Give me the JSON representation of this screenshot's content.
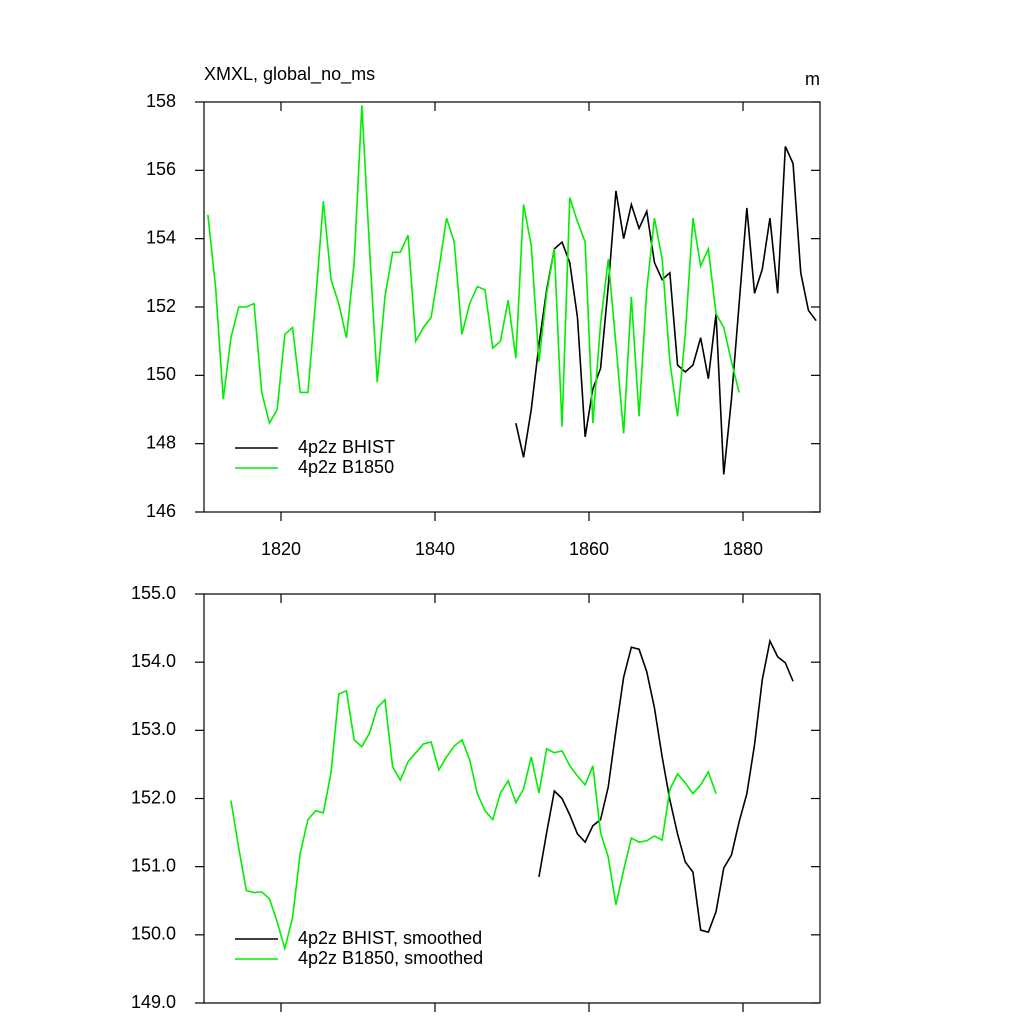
{
  "chart_data": [
    {
      "type": "line",
      "title": "XMXL, global_no_ms",
      "units": "m",
      "xlim": [
        1810,
        1890
      ],
      "xticks": [
        1820,
        1840,
        1860,
        1880
      ],
      "ylim": [
        146,
        158
      ],
      "yticks": [
        146,
        148,
        150,
        152,
        154,
        156,
        158
      ],
      "legend": "lower left",
      "series": [
        {
          "name": "4p2z BHIST",
          "color": "#000000",
          "x": [
            1850.5,
            1851.5,
            1852.5,
            1853.5,
            1854.5,
            1855.5,
            1856.5,
            1857.5,
            1858.5,
            1859.5,
            1860.5,
            1861.5,
            1862.5,
            1863.5,
            1864.5,
            1865.5,
            1866.5,
            1867.5,
            1868.5,
            1869.5,
            1870.5,
            1871.5,
            1872.5,
            1873.5,
            1874.5,
            1875.5,
            1876.5,
            1877.5,
            1878.5,
            1879.5,
            1880.5,
            1881.5,
            1882.5,
            1883.5,
            1884.5,
            1885.5,
            1886.5,
            1887.5,
            1888.5,
            1889.5
          ],
          "values": [
            148.6,
            147.6,
            149.0,
            150.9,
            152.5,
            153.7,
            153.9,
            153.3,
            151.7,
            148.2,
            149.6,
            150.2,
            152.6,
            155.4,
            154.0,
            155.0,
            154.3,
            154.8,
            153.3,
            152.8,
            153.0,
            150.3,
            150.1,
            150.3,
            151.1,
            149.9,
            151.8,
            147.1,
            149.3,
            152.1,
            154.9,
            152.4,
            153.1,
            154.6,
            152.4,
            156.7,
            156.2,
            153.0,
            151.9,
            151.6
          ]
        },
        {
          "name": "4p2z B1850",
          "color": "#00ee00",
          "x": [
            1810.5,
            1811.5,
            1812.5,
            1813.5,
            1814.5,
            1815.5,
            1816.5,
            1817.5,
            1818.5,
            1819.5,
            1820.5,
            1821.5,
            1822.5,
            1823.5,
            1824.5,
            1825.5,
            1826.5,
            1827.5,
            1828.5,
            1829.5,
            1830.5,
            1831.5,
            1832.5,
            1833.5,
            1834.5,
            1835.5,
            1836.5,
            1837.5,
            1838.5,
            1839.5,
            1840.5,
            1841.5,
            1842.5,
            1843.5,
            1844.5,
            1845.5,
            1846.5,
            1847.5,
            1848.5,
            1849.5,
            1850.5,
            1851.5,
            1852.5,
            1853.5,
            1854.5,
            1855.5,
            1856.5,
            1857.5,
            1858.5,
            1859.5,
            1860.5,
            1861.5,
            1862.5,
            1863.5,
            1864.5,
            1865.5,
            1866.5,
            1867.5,
            1868.5,
            1869.5,
            1870.5,
            1871.5,
            1872.5,
            1873.5,
            1874.5,
            1875.5,
            1876.5,
            1877.5,
            1878.5,
            1879.5
          ],
          "values": [
            154.7,
            152.6,
            149.3,
            151.1,
            152.0,
            152.0,
            152.1,
            149.5,
            148.6,
            149.0,
            151.2,
            151.4,
            149.5,
            149.5,
            152.2,
            155.1,
            152.8,
            152.1,
            151.1,
            153.3,
            157.9,
            153.7,
            149.8,
            152.3,
            153.6,
            153.6,
            154.1,
            151.0,
            151.4,
            151.7,
            153.1,
            154.6,
            153.9,
            151.2,
            152.1,
            152.6,
            152.5,
            150.8,
            151.0,
            152.2,
            150.5,
            155.0,
            153.8,
            150.4,
            152.4,
            153.7,
            148.5,
            155.2,
            154.5,
            153.9,
            148.6,
            151.5,
            153.4,
            150.9,
            148.3,
            152.3,
            148.8,
            152.5,
            154.6,
            153.4,
            150.4,
            148.8,
            151.2,
            154.6,
            153.2,
            153.7,
            151.8,
            151.4,
            150.4,
            149.5
          ]
        }
      ]
    },
    {
      "type": "line",
      "xlim": [
        1810,
        1890
      ],
      "xticks": [
        1820,
        1840,
        1860,
        1880
      ],
      "ylim": [
        149,
        155
      ],
      "yticks": [
        {
          "value": 149,
          "label": "149.0"
        },
        {
          "value": 150,
          "label": "150.0"
        },
        {
          "value": 151,
          "label": "151.0"
        },
        {
          "value": 152,
          "label": "152.0"
        },
        {
          "value": 153,
          "label": "153.0"
        },
        {
          "value": 154,
          "label": "154.0"
        },
        {
          "value": 155,
          "label": "155.0"
        }
      ],
      "legend": "lower left",
      "series": [
        {
          "name": "4p2z BHIST, smoothed",
          "color": "#000000",
          "x": [
            1853.5,
            1854.5,
            1855.5,
            1856.5,
            1857.5,
            1858.5,
            1859.5,
            1860.5,
            1861.5,
            1862.5,
            1863.5,
            1864.5,
            1865.5,
            1866.5,
            1867.5,
            1868.5,
            1869.5,
            1870.5,
            1871.5,
            1872.5,
            1873.5,
            1874.5,
            1875.5,
            1876.5,
            1877.5,
            1878.5,
            1879.5,
            1880.5,
            1881.5,
            1882.5,
            1883.5,
            1884.5,
            1885.5,
            1886.5
          ],
          "values": [
            150.85,
            151.5,
            152.11,
            152.0,
            151.76,
            151.48,
            151.36,
            151.6,
            151.69,
            152.17,
            153.0,
            153.78,
            154.22,
            154.19,
            153.86,
            153.33,
            152.61,
            151.98,
            151.48,
            151.07,
            150.92,
            150.07,
            150.04,
            150.34,
            150.98,
            151.17,
            151.66,
            152.07,
            152.79,
            153.74,
            154.31,
            154.08,
            153.99,
            153.72
          ]
        },
        {
          "name": "4p2z B1850, smoothed",
          "color": "#00ee00",
          "x": [
            1813.5,
            1814.5,
            1815.5,
            1816.5,
            1817.5,
            1818.5,
            1819.5,
            1820.5,
            1821.5,
            1822.5,
            1823.5,
            1824.5,
            1825.5,
            1826.5,
            1827.5,
            1828.5,
            1829.5,
            1830.5,
            1831.5,
            1832.5,
            1833.5,
            1834.5,
            1835.5,
            1836.5,
            1837.5,
            1838.5,
            1839.5,
            1840.5,
            1841.5,
            1842.5,
            1843.5,
            1844.5,
            1845.5,
            1846.5,
            1847.5,
            1848.5,
            1849.5,
            1850.5,
            1851.5,
            1852.5,
            1853.5,
            1854.5,
            1855.5,
            1856.5,
            1857.5,
            1858.5,
            1859.5,
            1860.5,
            1861.5,
            1862.5,
            1863.5,
            1864.5,
            1865.5,
            1866.5,
            1867.5,
            1868.5,
            1869.5,
            1870.5,
            1871.5,
            1872.5,
            1873.5,
            1874.5,
            1875.5,
            1876.5
          ],
          "values": [
            151.97,
            151.28,
            150.65,
            150.62,
            150.63,
            150.53,
            150.19,
            149.8,
            150.25,
            151.2,
            151.69,
            151.82,
            151.79,
            152.38,
            153.53,
            153.58,
            152.86,
            152.76,
            152.96,
            153.33,
            153.45,
            152.46,
            152.27,
            152.54,
            152.67,
            152.8,
            152.83,
            152.42,
            152.61,
            152.77,
            152.86,
            152.57,
            152.07,
            151.82,
            151.69,
            152.08,
            152.26,
            151.94,
            152.14,
            152.61,
            152.08,
            152.73,
            152.67,
            152.7,
            152.48,
            152.33,
            152.2,
            152.48,
            151.5,
            151.14,
            150.44,
            150.95,
            151.42,
            151.36,
            151.38,
            151.45,
            151.39,
            152.13,
            152.36,
            152.23,
            152.07,
            152.2,
            152.39,
            152.07
          ]
        }
      ]
    }
  ]
}
